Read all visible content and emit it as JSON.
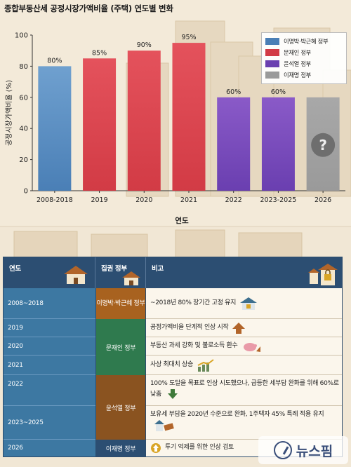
{
  "chart_data": {
    "type": "bar",
    "title": "종합부동산세 공정시장가액비율 (주택) 연도별 변화",
    "xlabel": "연도",
    "ylabel": "공정시장가액비율 (%)",
    "ylim": [
      0,
      100
    ],
    "yticks": [
      0,
      20,
      40,
      60,
      80,
      100
    ],
    "categories": [
      "2008-2018",
      "2019",
      "2020",
      "2021",
      "2022",
      "2023-2025",
      "2026"
    ],
    "values": [
      80,
      85,
      90,
      95,
      60,
      60,
      60
    ],
    "data_labels": [
      "80%",
      "85%",
      "90%",
      "95%",
      "60%",
      "60%",
      ""
    ],
    "bar_groups": [
      0,
      1,
      1,
      1,
      2,
      2,
      3
    ],
    "unknown_marker": "?",
    "legend_position": "top-right",
    "series": [
      {
        "name": "이명박·박근혜 정부",
        "color": "#4a7fb6"
      },
      {
        "name": "문재인 정부",
        "color": "#d23b45"
      },
      {
        "name": "윤석열 정부",
        "color": "#6a3fb0"
      },
      {
        "name": "이재명 정부",
        "color": "#9a9a9a"
      }
    ]
  },
  "table": {
    "headers": {
      "year": "연도",
      "gov": "집권 정부",
      "note": "비고"
    },
    "years": [
      "2008~2018",
      "2019",
      "2020",
      "2021",
      "2022",
      "2023~2025",
      "2026"
    ],
    "governments": [
      "이명박·박근혜 정부",
      "문재인 정부",
      "윤석열 정부",
      "이재명 정부"
    ],
    "notes": [
      "~2018년 80% 장기간 고정 유지",
      "공정가액비율 단계적 인상 시작",
      "부동산 과세 강화 및 불로소득 환수",
      "사상 최대치 상승",
      "100% 도달을 목표로 인상 시도했으나, 급등한 세부담 완화를 위해 60%로 낮춤",
      "보유세 부담을 2020년 수준으로 완화, 1주택자 45% 특례 적용 유지",
      "투기 억제를 위한 인상 검토"
    ],
    "gov_colors": [
      "#a8621f",
      "#2f7a4e",
      "#8a5320",
      "#2c4e72"
    ]
  },
  "watermark": "뉴스핌"
}
